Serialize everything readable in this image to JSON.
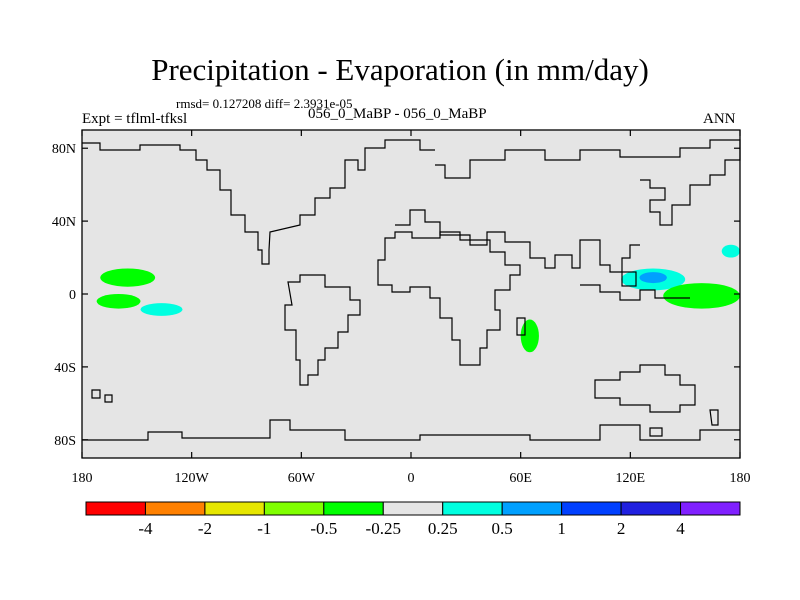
{
  "title": "Precipitation - Evaporation (in mm/day)",
  "stats": "rmsd= 0.127208 diff= 2.3931e-05",
  "expt": "Expt = tflml-tfksl",
  "subtitle": "056_0_MaBP - 056_0_MaBP",
  "season": "ANN",
  "colors": {
    "background": "#e5e5e5",
    "coast": "#000000"
  },
  "lat_labels": [
    "80N",
    "40N",
    "0",
    "40S",
    "80S"
  ],
  "lon_labels": [
    "180",
    "120W",
    "60W",
    "0",
    "60E",
    "120E",
    "180"
  ],
  "colorbar": {
    "colors": [
      "#ff0000",
      "#ff8000",
      "#e6e600",
      "#80ff00",
      "#00ff00",
      "#e5e5e5",
      "#00ffe0",
      "#00a0ff",
      "#0040ff",
      "#2020e0",
      "#8020ff"
    ],
    "labels": [
      "-4",
      "-2",
      "-1",
      "-0.5",
      "-0.25",
      "0.25",
      "0.5",
      "1",
      "2",
      "4"
    ]
  },
  "anomalies": [
    {
      "name": "green-pacific-north",
      "color": "#00ff00",
      "lon": [
        -170,
        -140
      ],
      "lat": [
        4,
        14
      ]
    },
    {
      "name": "green-pacific-south",
      "color": "#00ff00",
      "lon": [
        -172,
        -148
      ],
      "lat": [
        -8,
        0
      ]
    },
    {
      "name": "cyan-pacific-south",
      "color": "#00ffe0",
      "lon": [
        -148,
        -125
      ],
      "lat": [
        -12,
        -5
      ]
    },
    {
      "name": "green-africa-south",
      "color": "#00ff00",
      "lon": [
        60,
        70
      ],
      "lat": [
        -32,
        -14
      ]
    },
    {
      "name": "cyan-indonesia",
      "color": "#00ffe0",
      "lon": [
        115,
        150
      ],
      "lat": [
        2,
        14
      ]
    },
    {
      "name": "blue-indonesia",
      "color": "#00a0ff",
      "lon": [
        125,
        140
      ],
      "lat": [
        6,
        12
      ]
    },
    {
      "name": "green-pacific-west",
      "color": "#00ff00",
      "lon": [
        138,
        180
      ],
      "lat": [
        -8,
        6
      ]
    },
    {
      "name": "cyan-pacific-northwest",
      "color": "#00ffe0",
      "lon": [
        170,
        180
      ],
      "lat": [
        20,
        27
      ]
    }
  ]
}
